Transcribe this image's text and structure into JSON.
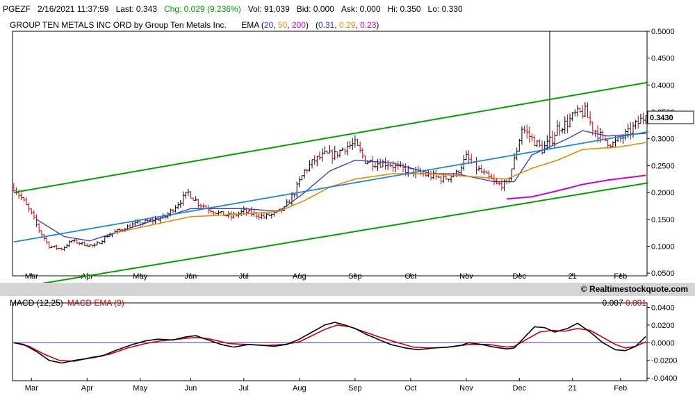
{
  "quote_bar": {
    "symbol": "PGEZF",
    "datetime": "2/16/2021 11:37:59",
    "last": "Last: 0.343",
    "chg": "Chg: 0.029 (9.236%)",
    "vol": "Vol: 91,039",
    "bid": "Bid: 0.000",
    "ask": "Ask: 0.000",
    "hi": "Hi: 0.350",
    "lo": "Lo: 0.330"
  },
  "chart_title": {
    "name": "GROUP TEN METALS INC ORD by Group Ten Metals Inc.",
    "ema_label": "EMA (",
    "ema_20": "20",
    "ema_50": "50",
    "ema_200": "200",
    "ema_close": ")",
    "ema_vals_open": "(",
    "ema_val_20": "0.31",
    "ema_val_50": "0.29",
    "ema_val_200": "0.23",
    "ema_vals_close": ")"
  },
  "branding": "© Realtimestockquote.com",
  "macd_panel": {
    "title": "MACD (12,25)",
    "signal_title": "MACD EMA (9)",
    "value": "0.007",
    "signal_value": "0.001"
  },
  "last_price_label": "0.3430",
  "colors": {
    "up_bar": "#000000",
    "down_bar": "#cc0000",
    "ema20": "#3333cc",
    "ema50": "#e68a00",
    "ema200": "#cc00cc",
    "channel": "#00a000",
    "trend": "#1e88d8",
    "macd": "#000000",
    "macd_signal": "#cc0000",
    "zero_line": "#3333cc"
  },
  "chart_data": [
    {
      "type": "ohlc",
      "title": "GROUP TEN METALS INC ORD by Group Ten Metals Inc.",
      "x_tick_labels": [
        "Mar",
        "Apr",
        "May",
        "Jun",
        "Jul",
        "Aug",
        "Sep",
        "Oct",
        "Nov",
        "Dec",
        "21",
        "Feb"
      ],
      "x_tick_index": [
        7,
        29,
        50,
        70,
        91,
        113,
        135,
        157,
        179,
        200,
        221,
        240
      ],
      "n_sessions": 251,
      "y_ticks": [
        0.05,
        0.1,
        0.15,
        0.2,
        0.25,
        0.3,
        0.35,
        0.4,
        0.45,
        0.5
      ],
      "y_tick_labels": [
        "0.0500",
        "0.1000",
        "0.1500",
        "0.2000",
        "0.2500",
        "0.3000",
        "0.3500",
        "0.4000",
        "0.4500",
        "0.5000"
      ],
      "ylim": [
        0.045,
        0.5
      ],
      "last_price": 0.343,
      "price_path": [
        [
          0,
          0.21
        ],
        [
          3,
          0.19
        ],
        [
          7,
          0.16
        ],
        [
          10,
          0.13
        ],
        [
          14,
          0.1
        ],
        [
          19,
          0.095
        ],
        [
          23,
          0.11
        ],
        [
          27,
          0.105
        ],
        [
          32,
          0.1
        ],
        [
          37,
          0.12
        ],
        [
          42,
          0.13
        ],
        [
          47,
          0.14
        ],
        [
          52,
          0.145
        ],
        [
          56,
          0.15
        ],
        [
          60,
          0.155
        ],
        [
          64,
          0.175
        ],
        [
          69,
          0.2
        ],
        [
          73,
          0.18
        ],
        [
          77,
          0.17
        ],
        [
          82,
          0.16
        ],
        [
          86,
          0.155
        ],
        [
          91,
          0.165
        ],
        [
          95,
          0.16
        ],
        [
          99,
          0.155
        ],
        [
          103,
          0.16
        ],
        [
          107,
          0.17
        ],
        [
          111,
          0.2
        ],
        [
          115,
          0.24
        ],
        [
          119,
          0.26
        ],
        [
          123,
          0.27
        ],
        [
          127,
          0.27
        ],
        [
          131,
          0.285
        ],
        [
          135,
          0.29
        ],
        [
          139,
          0.26
        ],
        [
          143,
          0.255
        ],
        [
          148,
          0.255
        ],
        [
          152,
          0.245
        ],
        [
          157,
          0.24
        ],
        [
          161,
          0.235
        ],
        [
          166,
          0.23
        ],
        [
          170,
          0.225
        ],
        [
          175,
          0.235
        ],
        [
          179,
          0.265
        ],
        [
          183,
          0.245
        ],
        [
          187,
          0.23
        ],
        [
          191,
          0.215
        ],
        [
          195,
          0.215
        ],
        [
          198,
          0.26
        ],
        [
          201,
          0.32
        ],
        [
          205,
          0.3
        ],
        [
          209,
          0.28
        ],
        [
          213,
          0.3
        ],
        [
          215,
          0.32
        ],
        [
          219,
          0.33
        ],
        [
          222,
          0.345
        ],
        [
          226,
          0.35
        ],
        [
          229,
          0.32
        ],
        [
          233,
          0.3
        ],
        [
          237,
          0.29
        ],
        [
          240,
          0.3
        ],
        [
          243,
          0.31
        ],
        [
          247,
          0.33
        ],
        [
          250,
          0.343
        ]
      ],
      "spike": {
        "index": 212,
        "high": 0.5,
        "low": 0.28
      },
      "series": [
        {
          "name": "EMA 20",
          "values_at": [
            [
              9,
              0.15
            ],
            [
              20,
              0.118
            ],
            [
              30,
              0.11
            ],
            [
              50,
              0.14
            ],
            [
              70,
              0.17
            ],
            [
              91,
              0.17
            ],
            [
              105,
              0.165
            ],
            [
              115,
              0.2
            ],
            [
              125,
              0.24
            ],
            [
              135,
              0.26
            ],
            [
              150,
              0.255
            ],
            [
              165,
              0.235
            ],
            [
              175,
              0.235
            ],
            [
              190,
              0.22
            ],
            [
              198,
              0.22
            ],
            [
              205,
              0.27
            ],
            [
              212,
              0.285
            ],
            [
              219,
              0.3
            ],
            [
              225,
              0.315
            ],
            [
              235,
              0.305
            ],
            [
              250,
              0.31
            ]
          ]
        },
        {
          "name": "EMA 50",
          "values_at": [
            [
              40,
              0.125
            ],
            [
              55,
              0.14
            ],
            [
              70,
              0.155
            ],
            [
              91,
              0.16
            ],
            [
              105,
              0.165
            ],
            [
              115,
              0.185
            ],
            [
              125,
              0.21
            ],
            [
              135,
              0.225
            ],
            [
              150,
              0.235
            ],
            [
              165,
              0.235
            ],
            [
              180,
              0.23
            ],
            [
              195,
              0.225
            ],
            [
              205,
              0.245
            ],
            [
              215,
              0.26
            ],
            [
              225,
              0.28
            ],
            [
              240,
              0.285
            ],
            [
              250,
              0.293
            ]
          ]
        },
        {
          "name": "EMA 200",
          "values_at": [
            [
              195,
              0.188
            ],
            [
              205,
              0.192
            ],
            [
              215,
              0.203
            ],
            [
              225,
              0.215
            ],
            [
              235,
              0.223
            ],
            [
              250,
              0.232
            ]
          ]
        },
        {
          "name": "Channel upper",
          "values_at": [
            [
              0,
              0.2
            ],
            [
              251,
              0.405
            ]
          ]
        },
        {
          "name": "Channel lower",
          "values_at": [
            [
              0,
              0.022
            ],
            [
              251,
              0.218
            ]
          ]
        },
        {
          "name": "Trend",
          "values_at": [
            [
              0,
              0.108
            ],
            [
              251,
              0.313
            ]
          ]
        }
      ]
    },
    {
      "type": "line",
      "title": "MACD (12,25)",
      "x_tick_labels": [
        "Mar",
        "Apr",
        "May",
        "Jun",
        "Jul",
        "Aug",
        "Sep",
        "Oct",
        "Nov",
        "Dec",
        "21",
        "Feb"
      ],
      "y_ticks": [
        -0.04,
        -0.02,
        0.0,
        0.02,
        0.04
      ],
      "y_tick_labels": [
        "-0.0400",
        "-0.0200",
        "0.0000",
        "0.0200",
        "0.0400"
      ],
      "ylim": [
        -0.043,
        0.045
      ],
      "series": [
        {
          "name": "MACD (12,25)",
          "values_at": [
            [
              0,
              0.0
            ],
            [
              4,
              -0.002
            ],
            [
              9,
              -0.01
            ],
            [
              14,
              -0.02
            ],
            [
              19,
              -0.023
            ],
            [
              24,
              -0.02
            ],
            [
              29,
              -0.018
            ],
            [
              35,
              -0.015
            ],
            [
              41,
              -0.008
            ],
            [
              47,
              -0.002
            ],
            [
              52,
              0.002
            ],
            [
              57,
              0.004
            ],
            [
              63,
              0.003
            ],
            [
              67,
              0.006
            ],
            [
              72,
              0.008
            ],
            [
              77,
              0.003
            ],
            [
              82,
              -0.002
            ],
            [
              87,
              -0.005
            ],
            [
              93,
              -0.002
            ],
            [
              98,
              -0.003
            ],
            [
              103,
              -0.004
            ],
            [
              108,
              -0.002
            ],
            [
              113,
              0.004
            ],
            [
              118,
              0.012
            ],
            [
              123,
              0.02
            ],
            [
              127,
              0.023
            ],
            [
              131,
              0.02
            ],
            [
              135,
              0.016
            ],
            [
              139,
              0.01
            ],
            [
              144,
              0.004
            ],
            [
              149,
              -0.002
            ],
            [
              155,
              -0.006
            ],
            [
              160,
              -0.008
            ],
            [
              166,
              -0.006
            ],
            [
              172,
              -0.005
            ],
            [
              177,
              -0.003
            ],
            [
              180,
              0.0
            ],
            [
              185,
              -0.002
            ],
            [
              190,
              -0.005
            ],
            [
              195,
              -0.007
            ],
            [
              198,
              -0.006
            ],
            [
              202,
              0.006
            ],
            [
              206,
              0.018
            ],
            [
              210,
              0.017
            ],
            [
              214,
              0.012
            ],
            [
              219,
              0.016
            ],
            [
              223,
              0.022
            ],
            [
              228,
              0.012
            ],
            [
              233,
              0.0
            ],
            [
              238,
              -0.008
            ],
            [
              242,
              -0.009
            ],
            [
              246,
              -0.004
            ],
            [
              250,
              0.007
            ]
          ]
        },
        {
          "name": "MACD EMA (9)",
          "values_at": [
            [
              0,
              0.0
            ],
            [
              6,
              -0.004
            ],
            [
              12,
              -0.013
            ],
            [
              18,
              -0.02
            ],
            [
              24,
              -0.021
            ],
            [
              30,
              -0.017
            ],
            [
              38,
              -0.013
            ],
            [
              45,
              -0.006
            ],
            [
              52,
              -0.001
            ],
            [
              58,
              0.002
            ],
            [
              65,
              0.004
            ],
            [
              72,
              0.006
            ],
            [
              78,
              0.004
            ],
            [
              85,
              -0.001
            ],
            [
              92,
              -0.002
            ],
            [
              100,
              -0.003
            ],
            [
              107,
              -0.002
            ],
            [
              113,
              0.001
            ],
            [
              118,
              0.008
            ],
            [
              123,
              0.015
            ],
            [
              128,
              0.02
            ],
            [
              133,
              0.018
            ],
            [
              138,
              0.013
            ],
            [
              145,
              0.006
            ],
            [
              152,
              0.0
            ],
            [
              158,
              -0.005
            ],
            [
              165,
              -0.006
            ],
            [
              172,
              -0.005
            ],
            [
              180,
              -0.002
            ],
            [
              188,
              -0.002
            ],
            [
              195,
              -0.005
            ],
            [
              198,
              -0.004
            ],
            [
              203,
              0.004
            ],
            [
              208,
              0.012
            ],
            [
              213,
              0.014
            ],
            [
              218,
              0.013
            ],
            [
              223,
              0.016
            ],
            [
              228,
              0.014
            ],
            [
              233,
              0.006
            ],
            [
              238,
              -0.002
            ],
            [
              242,
              -0.006
            ],
            [
              246,
              -0.004
            ],
            [
              250,
              0.001
            ]
          ]
        }
      ]
    }
  ]
}
